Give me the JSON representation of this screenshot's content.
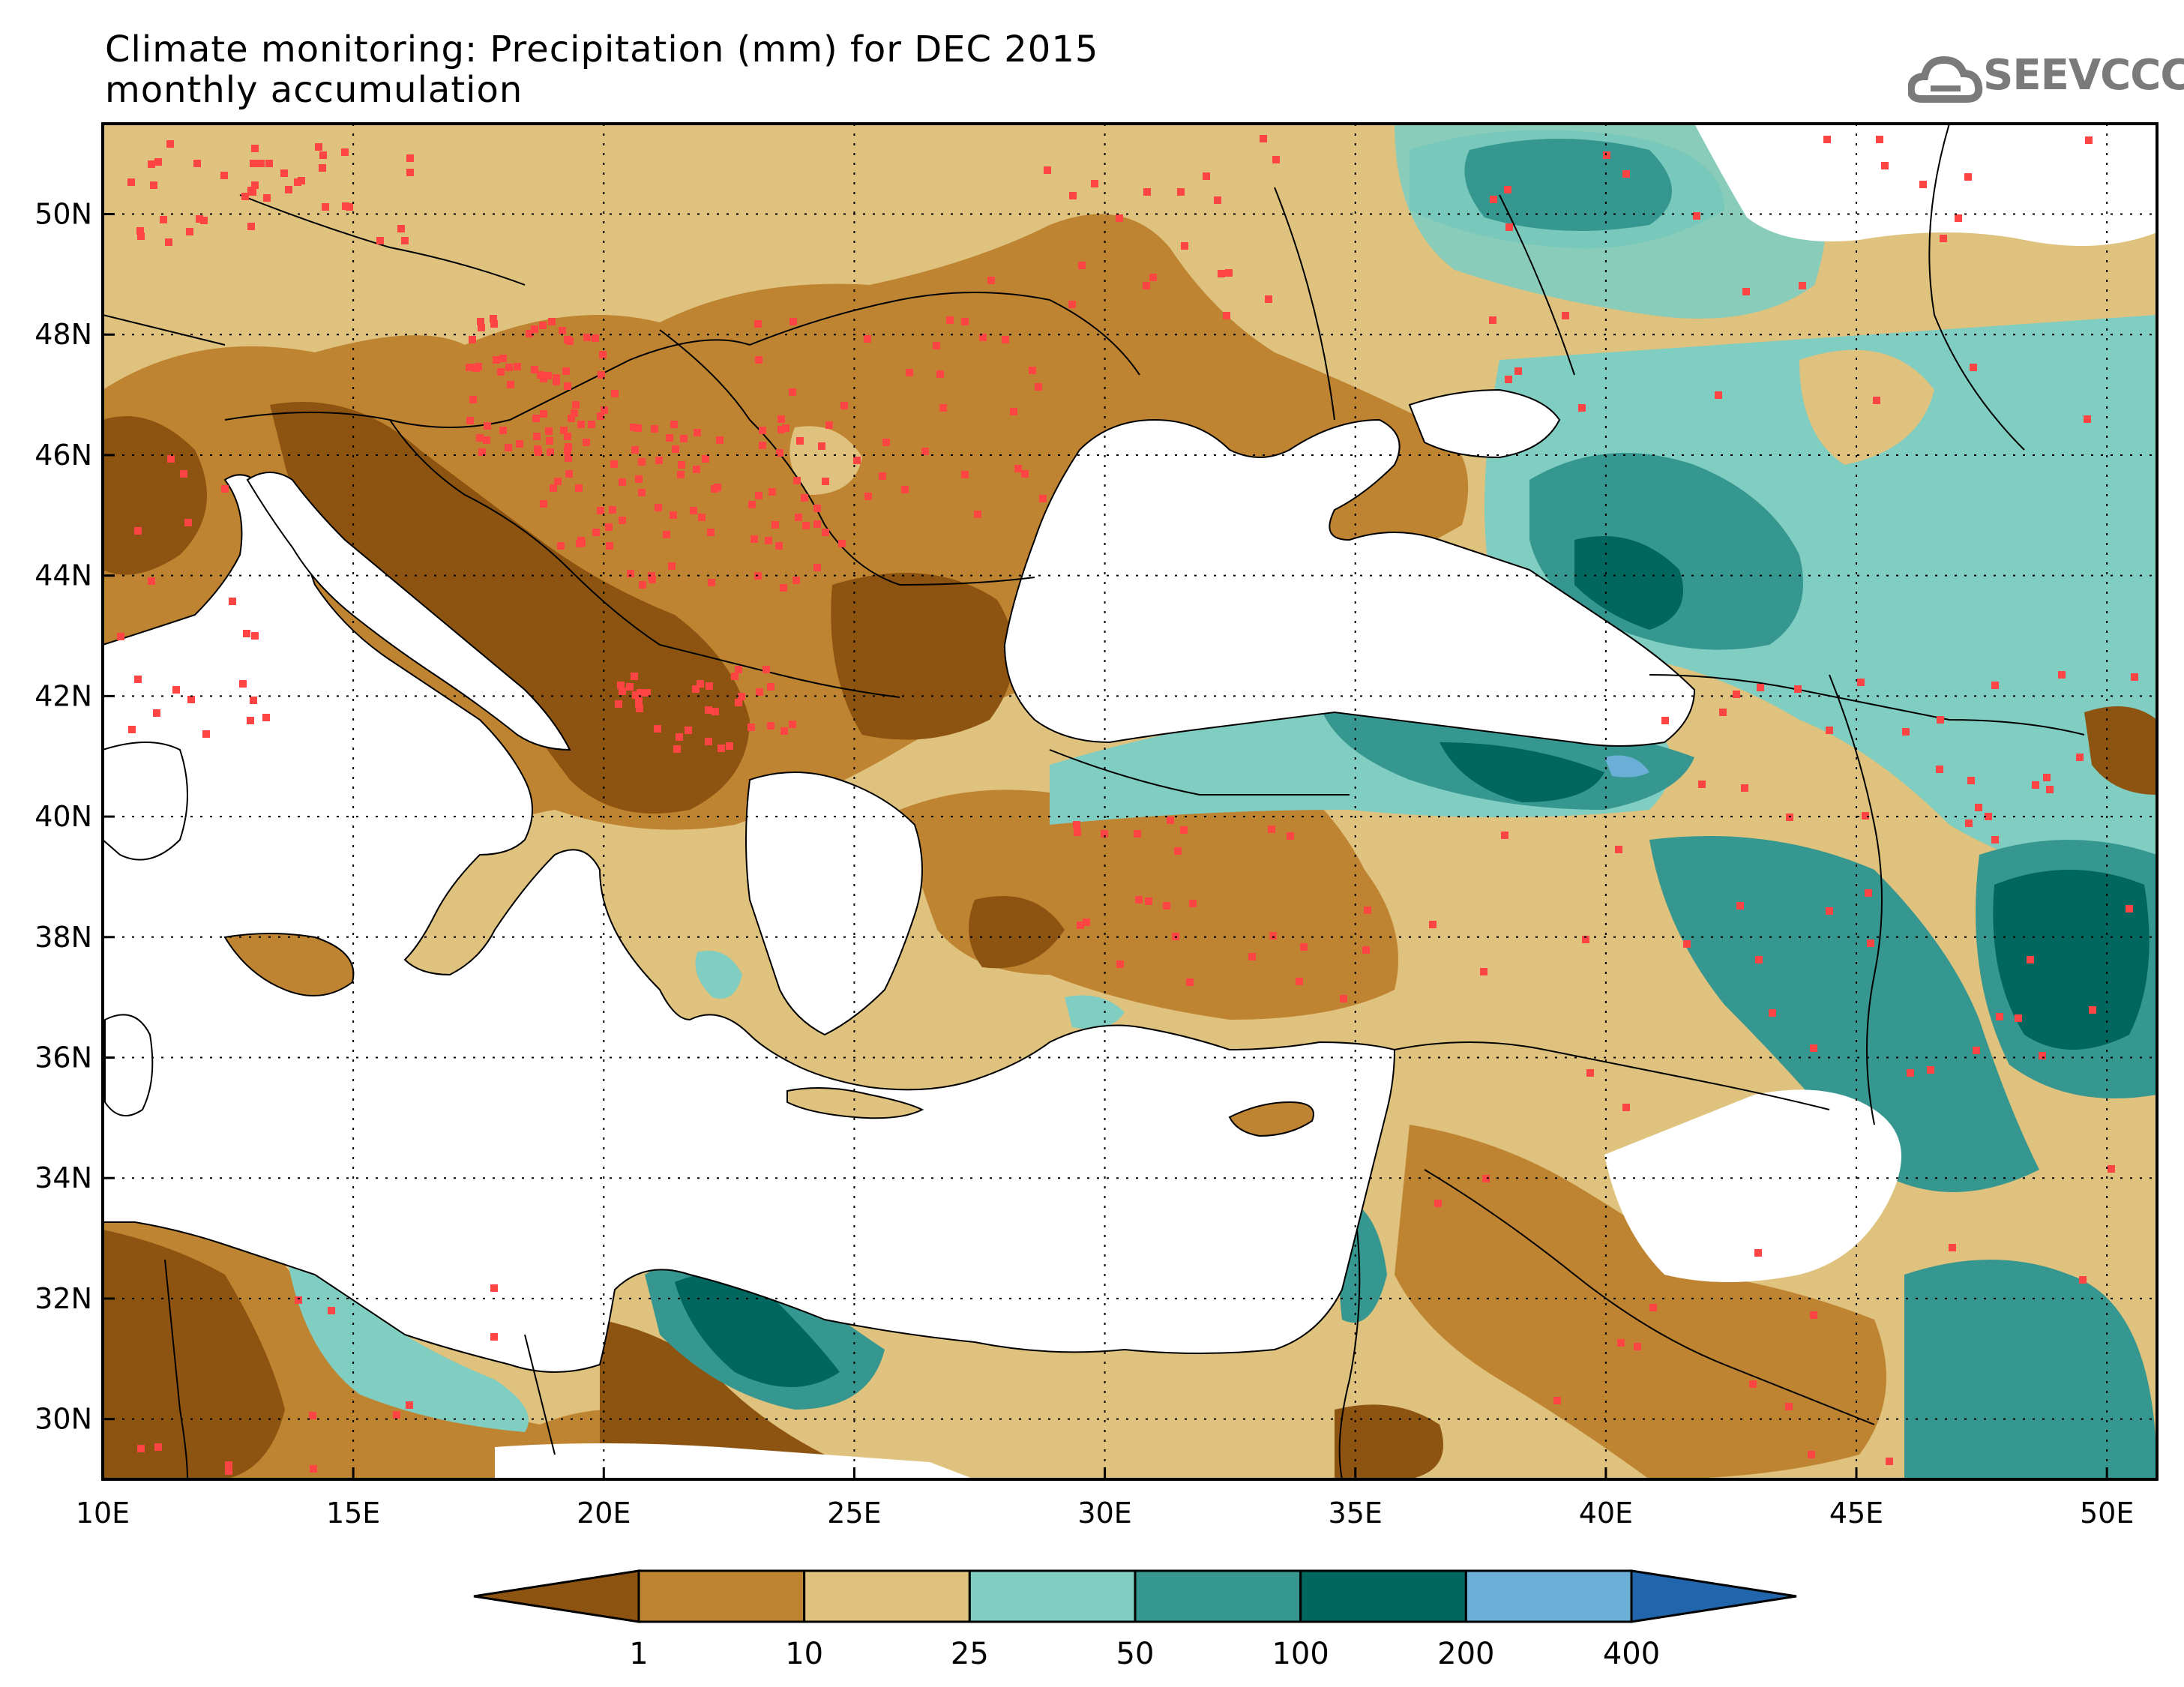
{
  "title": {
    "line1": "Climate monitoring: Precipitation (mm) for DEC 2015",
    "line2": "monthly accumulation"
  },
  "logo": {
    "text": "SEEVCCC",
    "icon": "cloud-icon",
    "color": "#7a7a7a"
  },
  "map": {
    "lon_range": [
      10,
      51
    ],
    "lat_range": [
      29,
      51.5
    ],
    "lon_ticks": [
      "10E",
      "15E",
      "20E",
      "25E",
      "30E",
      "35E",
      "40E",
      "45E",
      "50E"
    ],
    "lat_ticks": [
      "30N",
      "32N",
      "34N",
      "36N",
      "38N",
      "40N",
      "42N",
      "44N",
      "46N",
      "48N",
      "50N"
    ],
    "grid": "dotted"
  },
  "colorbar": {
    "labels": [
      "1",
      "10",
      "25",
      "50",
      "100",
      "200",
      "400"
    ],
    "colors": [
      "#8c5410",
      "#bf8431",
      "#dfc27d",
      "#80cdc1",
      "#35978f",
      "#01665e",
      "#6baed6",
      "#2166ac"
    ]
  },
  "station_marker_color": "#ff4444"
}
